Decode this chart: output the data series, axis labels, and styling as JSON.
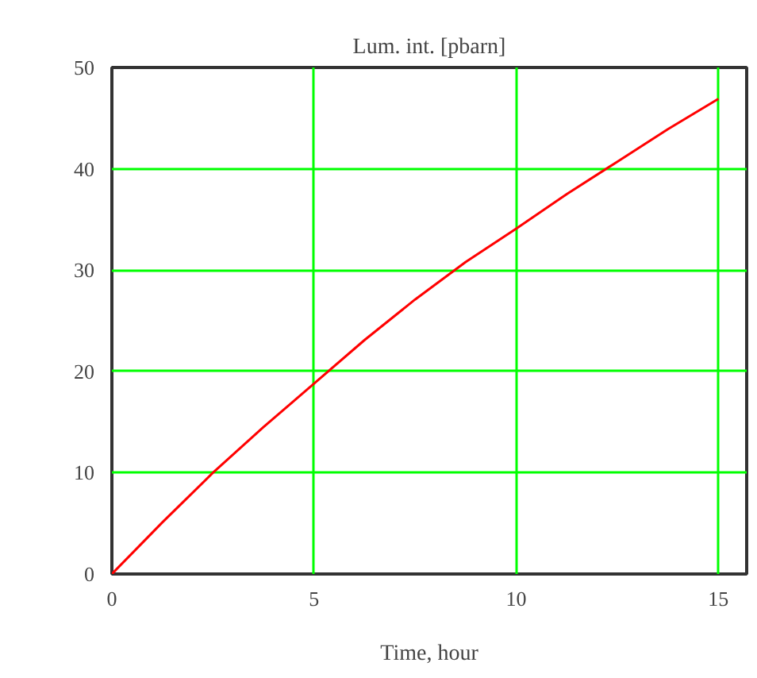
{
  "chart_data": {
    "type": "line",
    "title": "Lum. int. [pbarn]",
    "xlabel": "Time, hour",
    "x": [
      0,
      1.25,
      2.5,
      3.75,
      5,
      6.25,
      7.5,
      8.75,
      10,
      11.25,
      12.5,
      13.75,
      15
    ],
    "series": [
      {
        "color": "#ff0000",
        "values": [
          0,
          5.1,
          10,
          14.5,
          18.8,
          23.1,
          27.1,
          30.8,
          34.1,
          37.5,
          40.7,
          43.9,
          46.9
        ]
      }
    ],
    "xlim": [
      0,
      15.7
    ],
    "ylim": [
      0,
      50
    ],
    "xticks": [
      0,
      5,
      10,
      15
    ],
    "yticks": [
      0,
      10,
      20,
      30,
      40,
      50
    ],
    "grid": true,
    "marker": "none",
    "line_style": "solid"
  }
}
